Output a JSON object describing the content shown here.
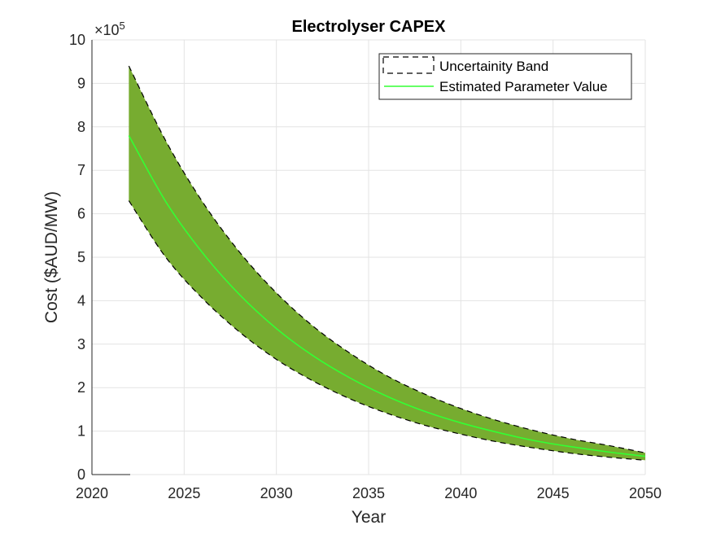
{
  "chart_data": {
    "type": "area",
    "title": "Electrolyser CAPEX",
    "xlabel": "Year",
    "ylabel": "Cost ($AUD/MW)",
    "exponent_label": "×10",
    "exponent_power": "5",
    "xlim": [
      2020,
      2050
    ],
    "ylim": [
      0,
      10
    ],
    "y_scale_multiplier": 100000,
    "xticks": [
      2020,
      2025,
      2030,
      2035,
      2040,
      2045,
      2050
    ],
    "yticks": [
      0,
      1,
      2,
      3,
      4,
      5,
      6,
      7,
      8,
      9,
      10
    ],
    "grid": true,
    "legend_position": "top-right",
    "x": [
      2022,
      2024,
      2026,
      2028,
      2030,
      2032,
      2034,
      2036,
      2038,
      2040,
      2042,
      2044,
      2046,
      2048,
      2050
    ],
    "series": [
      {
        "name": "Uncertainity Band",
        "kind": "band",
        "color": "#77AC30",
        "edge_color": "#000000",
        "upper": [
          9.4,
          7.68,
          6.27,
          5.12,
          4.18,
          3.41,
          2.79,
          2.27,
          1.86,
          1.52,
          1.24,
          1.01,
          0.82,
          0.67,
          0.5
        ],
        "lower": [
          6.3,
          5.0,
          4.05,
          3.28,
          2.65,
          2.15,
          1.74,
          1.41,
          1.14,
          0.93,
          0.75,
          0.61,
          0.49,
          0.4,
          0.33
        ]
      },
      {
        "name": "Estimated Parameter Value",
        "kind": "line",
        "color": "#33FF33",
        "values": [
          7.8,
          6.28,
          5.1,
          4.14,
          3.36,
          2.73,
          2.22,
          1.8,
          1.46,
          1.19,
          0.97,
          0.78,
          0.64,
          0.52,
          0.42
        ]
      }
    ]
  }
}
